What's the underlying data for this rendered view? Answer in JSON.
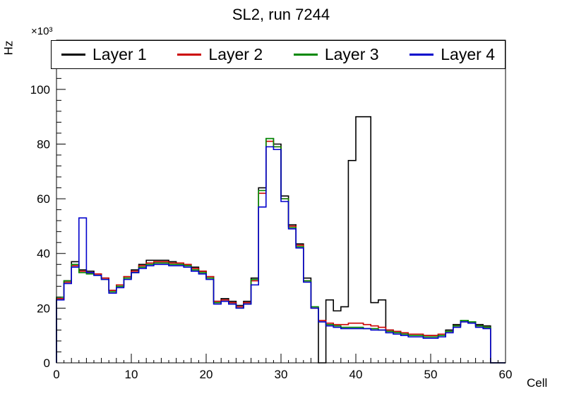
{
  "axes": {
    "x_ticks": [
      0,
      10,
      20,
      30,
      40,
      50,
      60
    ],
    "y_ticks": [
      0,
      20,
      40,
      60,
      80,
      100
    ],
    "x_minor_step": 1,
    "y_minor_step": 4
  },
  "chart_data": {
    "type": "line",
    "subtype": "step-histogram",
    "title": "SL2, run 7244",
    "xlabel": "Cell",
    "ylabel": "Hz",
    "y_multiplier": "×10³",
    "values_unit": "1e3 Hz",
    "xlim": [
      0,
      60
    ],
    "ylim": [
      0,
      118
    ],
    "bin_width": 1,
    "grid": false,
    "legend_position": "top-span",
    "series": [
      {
        "name": "Layer 1",
        "color": "#000000",
        "values": [
          23,
          30,
          37,
          34,
          33.5,
          32.5,
          31,
          26.5,
          28,
          31.5,
          34,
          36,
          37.5,
          37.5,
          37.5,
          37,
          36.5,
          36,
          35,
          33.5,
          31.5,
          22.5,
          23.5,
          22.5,
          21,
          22.5,
          31,
          64,
          82,
          80,
          61,
          50.5,
          43.5,
          31,
          20,
          0,
          23,
          19,
          20.5,
          74,
          90,
          90,
          22,
          23,
          12,
          11.5,
          11,
          10.5,
          10.5,
          10,
          10,
          10.5,
          12,
          14,
          15.5,
          15,
          14,
          13.5,
          0,
          0
        ]
      },
      {
        "name": "Layer 2",
        "color": "#cc0000",
        "values": [
          23.5,
          29.5,
          35.5,
          33.5,
          33,
          32.5,
          31,
          26.5,
          28.5,
          31.5,
          33.5,
          35.5,
          36.5,
          37,
          37,
          36.5,
          36.5,
          36,
          34.5,
          33.5,
          31.5,
          22.5,
          23,
          22,
          20.5,
          22,
          30,
          62,
          81,
          79,
          60,
          50,
          43,
          30,
          20,
          15.5,
          14.5,
          14,
          14,
          14.5,
          14.5,
          14,
          13.5,
          13,
          12,
          11.5,
          11,
          10.5,
          10.5,
          10,
          10,
          10.5,
          11.5,
          13.5,
          15,
          14.5,
          13.5,
          13,
          0,
          0
        ]
      },
      {
        "name": "Layer 3",
        "color": "#008800",
        "values": [
          24,
          30,
          36,
          33,
          32.5,
          32,
          30.5,
          26,
          28,
          31,
          33,
          35,
          36,
          36.5,
          36.5,
          36,
          36,
          35.5,
          34,
          33,
          31,
          22,
          22.5,
          21.5,
          20,
          21.5,
          30.5,
          63,
          82,
          79,
          60,
          49.5,
          42.5,
          30,
          20.5,
          15,
          14,
          13.5,
          13,
          13,
          13,
          12.5,
          12.5,
          12,
          11.5,
          11,
          10.5,
          10,
          10,
          9.5,
          9.5,
          10,
          11.5,
          13.5,
          15.5,
          15,
          13.5,
          13,
          0,
          0
        ]
      },
      {
        "name": "Layer 4",
        "color": "#0000cc",
        "values": [
          23,
          29,
          35,
          53,
          33,
          32,
          30.5,
          25.5,
          27.5,
          30.5,
          33,
          34.5,
          35.5,
          36,
          36,
          35.5,
          35.5,
          35,
          33.5,
          32.5,
          30.5,
          21.5,
          22.5,
          21.5,
          20,
          21.5,
          28.5,
          57,
          79,
          78,
          59,
          49,
          42,
          29.5,
          20,
          15,
          13.5,
          13,
          12.5,
          12.5,
          12.5,
          12.5,
          12,
          12,
          11,
          10.5,
          10,
          9.5,
          9.5,
          9,
          9,
          9.5,
          11,
          13,
          15,
          14.5,
          13,
          12.5,
          0,
          0
        ]
      }
    ]
  }
}
